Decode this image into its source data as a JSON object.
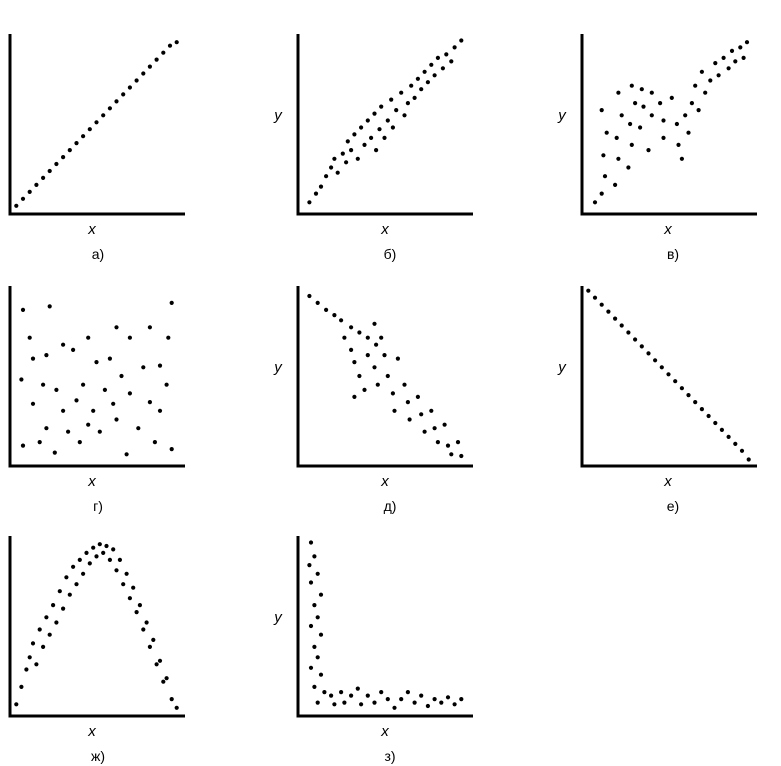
{
  "chart_data": [
    {
      "type": "scatter",
      "caption": "а)",
      "xlabel": "x",
      "ylabel": "",
      "xlim": [
        0,
        1
      ],
      "ylim": [
        0,
        1
      ],
      "grid": false,
      "points": [
        [
          0.02,
          0.03
        ],
        [
          0.06,
          0.07
        ],
        [
          0.1,
          0.11
        ],
        [
          0.14,
          0.15
        ],
        [
          0.18,
          0.19
        ],
        [
          0.22,
          0.23
        ],
        [
          0.26,
          0.27
        ],
        [
          0.3,
          0.31
        ],
        [
          0.34,
          0.35
        ],
        [
          0.38,
          0.39
        ],
        [
          0.42,
          0.43
        ],
        [
          0.46,
          0.47
        ],
        [
          0.5,
          0.51
        ],
        [
          0.54,
          0.55
        ],
        [
          0.58,
          0.59
        ],
        [
          0.62,
          0.63
        ],
        [
          0.66,
          0.67
        ],
        [
          0.7,
          0.71
        ],
        [
          0.74,
          0.75
        ],
        [
          0.78,
          0.79
        ],
        [
          0.82,
          0.83
        ],
        [
          0.86,
          0.87
        ],
        [
          0.9,
          0.91
        ],
        [
          0.94,
          0.95
        ],
        [
          0.98,
          0.97
        ]
      ]
    },
    {
      "type": "scatter",
      "caption": "б)",
      "xlabel": "x",
      "ylabel": "y",
      "xlim": [
        0,
        1
      ],
      "ylim": [
        0,
        1
      ],
      "grid": false,
      "points": [
        [
          0.05,
          0.05
        ],
        [
          0.09,
          0.1
        ],
        [
          0.12,
          0.14
        ],
        [
          0.15,
          0.2
        ],
        [
          0.18,
          0.25
        ],
        [
          0.2,
          0.3
        ],
        [
          0.22,
          0.22
        ],
        [
          0.25,
          0.33
        ],
        [
          0.27,
          0.28
        ],
        [
          0.28,
          0.4
        ],
        [
          0.3,
          0.35
        ],
        [
          0.32,
          0.44
        ],
        [
          0.34,
          0.3
        ],
        [
          0.36,
          0.48
        ],
        [
          0.38,
          0.38
        ],
        [
          0.4,
          0.52
        ],
        [
          0.42,
          0.42
        ],
        [
          0.44,
          0.56
        ],
        [
          0.45,
          0.35
        ],
        [
          0.47,
          0.47
        ],
        [
          0.48,
          0.6
        ],
        [
          0.5,
          0.42
        ],
        [
          0.52,
          0.52
        ],
        [
          0.54,
          0.64
        ],
        [
          0.55,
          0.48
        ],
        [
          0.57,
          0.58
        ],
        [
          0.6,
          0.68
        ],
        [
          0.62,
          0.55
        ],
        [
          0.64,
          0.62
        ],
        [
          0.66,
          0.72
        ],
        [
          0.68,
          0.65
        ],
        [
          0.7,
          0.76
        ],
        [
          0.72,
          0.7
        ],
        [
          0.74,
          0.8
        ],
        [
          0.76,
          0.74
        ],
        [
          0.78,
          0.84
        ],
        [
          0.8,
          0.78
        ],
        [
          0.82,
          0.88
        ],
        [
          0.85,
          0.82
        ],
        [
          0.87,
          0.9
        ],
        [
          0.9,
          0.86
        ],
        [
          0.92,
          0.94
        ],
        [
          0.96,
          0.98
        ]
      ]
    },
    {
      "type": "scatter",
      "caption": "в)",
      "xlabel": "x",
      "ylabel": "y",
      "xlim": [
        0,
        1
      ],
      "ylim": [
        0,
        1
      ],
      "grid": false,
      "points": [
        [
          0.06,
          0.05
        ],
        [
          0.1,
          0.1
        ],
        [
          0.12,
          0.2
        ],
        [
          0.11,
          0.32
        ],
        [
          0.13,
          0.45
        ],
        [
          0.1,
          0.58
        ],
        [
          0.18,
          0.15
        ],
        [
          0.2,
          0.3
        ],
        [
          0.19,
          0.42
        ],
        [
          0.22,
          0.55
        ],
        [
          0.2,
          0.68
        ],
        [
          0.26,
          0.25
        ],
        [
          0.28,
          0.38
        ],
        [
          0.27,
          0.5
        ],
        [
          0.3,
          0.62
        ],
        [
          0.28,
          0.72
        ],
        [
          0.33,
          0.48
        ],
        [
          0.35,
          0.6
        ],
        [
          0.34,
          0.7
        ],
        [
          0.38,
          0.35
        ],
        [
          0.4,
          0.55
        ],
        [
          0.4,
          0.68
        ],
        [
          0.45,
          0.62
        ],
        [
          0.47,
          0.52
        ],
        [
          0.47,
          0.42
        ],
        [
          0.52,
          0.65
        ],
        [
          0.55,
          0.5
        ],
        [
          0.56,
          0.38
        ],
        [
          0.6,
          0.55
        ],
        [
          0.58,
          0.3
        ],
        [
          0.62,
          0.45
        ],
        [
          0.64,
          0.62
        ],
        [
          0.66,
          0.72
        ],
        [
          0.68,
          0.58
        ],
        [
          0.7,
          0.8
        ],
        [
          0.72,
          0.68
        ],
        [
          0.75,
          0.75
        ],
        [
          0.78,
          0.85
        ],
        [
          0.8,
          0.78
        ],
        [
          0.83,
          0.88
        ],
        [
          0.86,
          0.82
        ],
        [
          0.88,
          0.92
        ],
        [
          0.9,
          0.86
        ],
        [
          0.93,
          0.94
        ],
        [
          0.95,
          0.88
        ],
        [
          0.97,
          0.97
        ]
      ]
    },
    {
      "type": "scatter",
      "caption": "г)",
      "xlabel": "x",
      "ylabel": "",
      "xlim": [
        0,
        1
      ],
      "ylim": [
        0,
        1
      ],
      "grid": false,
      "points": [
        [
          0.06,
          0.88
        ],
        [
          0.22,
          0.9
        ],
        [
          0.95,
          0.92
        ],
        [
          0.1,
          0.72
        ],
        [
          0.3,
          0.68
        ],
        [
          0.45,
          0.72
        ],
        [
          0.62,
          0.78
        ],
        [
          0.7,
          0.72
        ],
        [
          0.82,
          0.78
        ],
        [
          0.93,
          0.72
        ],
        [
          0.12,
          0.6
        ],
        [
          0.2,
          0.62
        ],
        [
          0.36,
          0.65
        ],
        [
          0.5,
          0.58
        ],
        [
          0.58,
          0.6
        ],
        [
          0.65,
          0.5
        ],
        [
          0.78,
          0.55
        ],
        [
          0.88,
          0.56
        ],
        [
          0.05,
          0.48
        ],
        [
          0.18,
          0.45
        ],
        [
          0.26,
          0.42
        ],
        [
          0.42,
          0.45
        ],
        [
          0.55,
          0.42
        ],
        [
          0.7,
          0.4
        ],
        [
          0.82,
          0.35
        ],
        [
          0.92,
          0.45
        ],
        [
          0.12,
          0.34
        ],
        [
          0.3,
          0.3
        ],
        [
          0.38,
          0.36
        ],
        [
          0.48,
          0.3
        ],
        [
          0.6,
          0.34
        ],
        [
          0.75,
          0.2
        ],
        [
          0.88,
          0.3
        ],
        [
          0.2,
          0.2
        ],
        [
          0.33,
          0.18
        ],
        [
          0.45,
          0.22
        ],
        [
          0.62,
          0.25
        ],
        [
          0.06,
          0.1
        ],
        [
          0.16,
          0.12
        ],
        [
          0.25,
          0.06
        ],
        [
          0.4,
          0.12
        ],
        [
          0.52,
          0.18
        ],
        [
          0.68,
          0.05
        ],
        [
          0.85,
          0.12
        ],
        [
          0.95,
          0.08
        ]
      ]
    },
    {
      "type": "scatter",
      "caption": "д)",
      "xlabel": "x",
      "ylabel": "y",
      "xlim": [
        0,
        1
      ],
      "ylim": [
        0,
        1
      ],
      "grid": false,
      "points": [
        [
          0.05,
          0.96
        ],
        [
          0.1,
          0.92
        ],
        [
          0.15,
          0.88
        ],
        [
          0.2,
          0.85
        ],
        [
          0.24,
          0.82
        ],
        [
          0.3,
          0.78
        ],
        [
          0.35,
          0.75
        ],
        [
          0.4,
          0.72
        ],
        [
          0.45,
          0.68
        ],
        [
          0.26,
          0.72
        ],
        [
          0.3,
          0.65
        ],
        [
          0.32,
          0.58
        ],
        [
          0.35,
          0.5
        ],
        [
          0.32,
          0.38
        ],
        [
          0.38,
          0.42
        ],
        [
          0.4,
          0.62
        ],
        [
          0.44,
          0.55
        ],
        [
          0.46,
          0.45
        ],
        [
          0.5,
          0.62
        ],
        [
          0.52,
          0.5
        ],
        [
          0.55,
          0.4
        ],
        [
          0.56,
          0.3
        ],
        [
          0.58,
          0.6
        ],
        [
          0.62,
          0.45
        ],
        [
          0.64,
          0.35
        ],
        [
          0.65,
          0.25
        ],
        [
          0.7,
          0.38
        ],
        [
          0.72,
          0.28
        ],
        [
          0.74,
          0.18
        ],
        [
          0.78,
          0.3
        ],
        [
          0.8,
          0.2
        ],
        [
          0.82,
          0.12
        ],
        [
          0.86,
          0.22
        ],
        [
          0.88,
          0.1
        ],
        [
          0.9,
          0.05
        ],
        [
          0.94,
          0.12
        ],
        [
          0.96,
          0.04
        ],
        [
          0.44,
          0.8
        ],
        [
          0.48,
          0.72
        ]
      ]
    },
    {
      "type": "scatter",
      "caption": "е)",
      "xlabel": "x",
      "ylabel": "y",
      "xlim": [
        0,
        1
      ],
      "ylim": [
        0,
        1
      ],
      "grid": false,
      "points": [
        [
          0.02,
          0.99
        ],
        [
          0.06,
          0.95
        ],
        [
          0.1,
          0.91
        ],
        [
          0.14,
          0.87
        ],
        [
          0.18,
          0.83
        ],
        [
          0.22,
          0.79
        ],
        [
          0.26,
          0.75
        ],
        [
          0.3,
          0.71
        ],
        [
          0.34,
          0.67
        ],
        [
          0.38,
          0.63
        ],
        [
          0.42,
          0.59
        ],
        [
          0.46,
          0.55
        ],
        [
          0.5,
          0.51
        ],
        [
          0.54,
          0.47
        ],
        [
          0.58,
          0.43
        ],
        [
          0.62,
          0.39
        ],
        [
          0.66,
          0.35
        ],
        [
          0.7,
          0.31
        ],
        [
          0.74,
          0.27
        ],
        [
          0.78,
          0.23
        ],
        [
          0.82,
          0.19
        ],
        [
          0.86,
          0.15
        ],
        [
          0.9,
          0.11
        ],
        [
          0.94,
          0.07
        ],
        [
          0.98,
          0.02
        ]
      ]
    },
    {
      "type": "scatter",
      "caption": "ж)",
      "xlabel": "x",
      "ylabel": "",
      "xlim": [
        0,
        1
      ],
      "ylim": [
        0,
        1
      ],
      "grid": false,
      "points": [
        [
          0.02,
          0.05
        ],
        [
          0.05,
          0.15
        ],
        [
          0.08,
          0.25
        ],
        [
          0.1,
          0.32
        ],
        [
          0.12,
          0.4
        ],
        [
          0.14,
          0.28
        ],
        [
          0.16,
          0.48
        ],
        [
          0.18,
          0.38
        ],
        [
          0.2,
          0.55
        ],
        [
          0.22,
          0.45
        ],
        [
          0.24,
          0.62
        ],
        [
          0.26,
          0.52
        ],
        [
          0.28,
          0.7
        ],
        [
          0.3,
          0.6
        ],
        [
          0.32,
          0.78
        ],
        [
          0.34,
          0.68
        ],
        [
          0.36,
          0.84
        ],
        [
          0.38,
          0.74
        ],
        [
          0.4,
          0.88
        ],
        [
          0.42,
          0.8
        ],
        [
          0.44,
          0.92
        ],
        [
          0.46,
          0.86
        ],
        [
          0.48,
          0.95
        ],
        [
          0.5,
          0.9
        ],
        [
          0.52,
          0.97
        ],
        [
          0.54,
          0.92
        ],
        [
          0.56,
          0.96
        ],
        [
          0.58,
          0.88
        ],
        [
          0.6,
          0.94
        ],
        [
          0.62,
          0.82
        ],
        [
          0.64,
          0.88
        ],
        [
          0.66,
          0.74
        ],
        [
          0.68,
          0.8
        ],
        [
          0.7,
          0.66
        ],
        [
          0.72,
          0.72
        ],
        [
          0.74,
          0.58
        ],
        [
          0.76,
          0.62
        ],
        [
          0.78,
          0.48
        ],
        [
          0.8,
          0.52
        ],
        [
          0.82,
          0.38
        ],
        [
          0.84,
          0.42
        ],
        [
          0.86,
          0.28
        ],
        [
          0.88,
          0.3
        ],
        [
          0.9,
          0.18
        ],
        [
          0.92,
          0.2
        ],
        [
          0.95,
          0.08
        ],
        [
          0.98,
          0.03
        ]
      ]
    },
    {
      "type": "scatter",
      "caption": "з)",
      "xlabel": "x",
      "ylabel": "y",
      "xlim": [
        0,
        1
      ],
      "ylim": [
        0,
        1
      ],
      "grid": false,
      "points": [
        [
          0.06,
          0.98
        ],
        [
          0.08,
          0.9
        ],
        [
          0.05,
          0.85
        ],
        [
          0.1,
          0.8
        ],
        [
          0.06,
          0.75
        ],
        [
          0.12,
          0.68
        ],
        [
          0.08,
          0.62
        ],
        [
          0.1,
          0.55
        ],
        [
          0.06,
          0.5
        ],
        [
          0.12,
          0.45
        ],
        [
          0.08,
          0.38
        ],
        [
          0.1,
          0.32
        ],
        [
          0.06,
          0.26
        ],
        [
          0.12,
          0.22
        ],
        [
          0.08,
          0.15
        ],
        [
          0.14,
          0.12
        ],
        [
          0.1,
          0.06
        ],
        [
          0.18,
          0.1
        ],
        [
          0.2,
          0.05
        ],
        [
          0.24,
          0.12
        ],
        [
          0.26,
          0.06
        ],
        [
          0.3,
          0.1
        ],
        [
          0.34,
          0.14
        ],
        [
          0.36,
          0.05
        ],
        [
          0.4,
          0.1
        ],
        [
          0.44,
          0.06
        ],
        [
          0.48,
          0.12
        ],
        [
          0.52,
          0.08
        ],
        [
          0.56,
          0.03
        ],
        [
          0.6,
          0.08
        ],
        [
          0.64,
          0.12
        ],
        [
          0.68,
          0.06
        ],
        [
          0.72,
          0.1
        ],
        [
          0.76,
          0.04
        ],
        [
          0.8,
          0.08
        ],
        [
          0.84,
          0.06
        ],
        [
          0.88,
          0.09
        ],
        [
          0.92,
          0.05
        ],
        [
          0.96,
          0.08
        ]
      ]
    }
  ]
}
